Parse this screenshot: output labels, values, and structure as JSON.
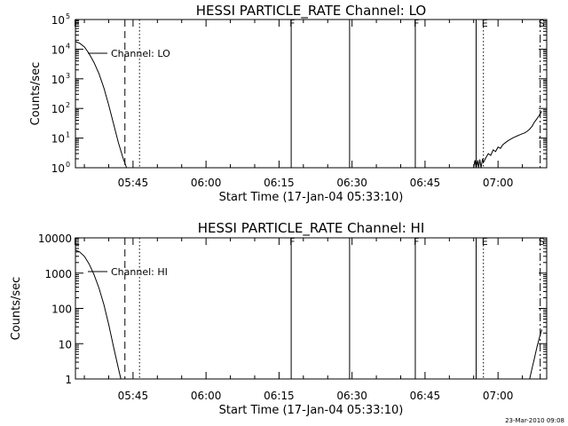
{
  "footer": {
    "timestamp": "23-Mar-2010 09:08"
  },
  "chart_data": [
    {
      "type": "line",
      "title": "HESSI PARTICLE_RATE Channel: LO",
      "xlabel": "Start Time (17-Jan-04 05:33:10)",
      "ylabel": "Counts/sec",
      "yscale": "log",
      "xlim": [
        "05:33:10",
        "07:10:00"
      ],
      "ylim": [
        1,
        100000
      ],
      "xticks": [
        "05:45",
        "06:00",
        "06:15",
        "06:30",
        "06:45",
        "07:00"
      ],
      "yticks": [
        {
          "value": 1,
          "base": "10",
          "exp": "0"
        },
        {
          "value": 10,
          "base": "10",
          "exp": "1"
        },
        {
          "value": 100,
          "base": "10",
          "exp": "2"
        },
        {
          "value": 1000,
          "base": "10",
          "exp": "3"
        },
        {
          "value": 10000,
          "base": "10",
          "exp": "4"
        },
        {
          "value": 100000,
          "base": "10",
          "exp": "5"
        }
      ],
      "legend": "Channel: LO",
      "legend_placement": "top-left",
      "series": [
        {
          "name": "Channel: LO",
          "segments": [
            [
              [
                "05:33:10",
                18000
              ],
              [
                "05:34:00",
                16000
              ],
              [
                "05:35:00",
                12000
              ],
              [
                "05:36:00",
                7000
              ],
              [
                "05:37:00",
                3500
              ],
              [
                "05:38:00",
                1500
              ],
              [
                "05:39:00",
                500
              ],
              [
                "05:40:00",
                130
              ],
              [
                "05:41:00",
                30
              ],
              [
                "05:42:00",
                7
              ],
              [
                "05:43:00",
                2
              ],
              [
                "05:43:40",
                1
              ]
            ],
            [
              [
                "06:55:00",
                1
              ],
              [
                "06:55:15",
                1.8
              ],
              [
                "06:55:30",
                1
              ],
              [
                "06:55:50",
                1.8
              ],
              [
                "06:56:00",
                1
              ],
              [
                "06:56:15",
                1.9
              ],
              [
                "06:56:30",
                1
              ],
              [
                "06:56:50",
                2
              ],
              [
                "06:57:00",
                1.5
              ],
              [
                "06:57:30",
                2.2
              ],
              [
                "06:58:00",
                3
              ],
              [
                "06:58:30",
                2.6
              ],
              [
                "06:59:00",
                4
              ],
              [
                "06:59:30",
                3.5
              ],
              [
                "07:00:00",
                5
              ],
              [
                "07:00:30",
                4.5
              ],
              [
                "07:01:00",
                6
              ],
              [
                "07:01:30",
                7
              ],
              [
                "07:02:00",
                8
              ],
              [
                "07:02:30",
                9
              ],
              [
                "07:03:00",
                10
              ],
              [
                "07:03:30",
                11
              ],
              [
                "07:04:00",
                12
              ],
              [
                "07:04:30",
                13
              ],
              [
                "07:05:00",
                14
              ],
              [
                "07:05:30",
                15
              ],
              [
                "07:06:00",
                17
              ],
              [
                "07:06:30",
                20
              ],
              [
                "07:07:00",
                25
              ],
              [
                "07:07:30",
                35
              ],
              [
                "07:08:00",
                45
              ],
              [
                "07:08:30",
                60
              ],
              [
                "07:09:00",
                80
              ]
            ]
          ]
        }
      ],
      "markers": [
        {
          "time": "05:33:10",
          "style": "solid",
          "label": "E"
        },
        {
          "time": "05:43:20",
          "style": "dashed",
          "label": ""
        },
        {
          "time": "05:46:20",
          "style": "dotted",
          "label": ""
        },
        {
          "time": "06:17:30",
          "style": "solid",
          "label": "F"
        },
        {
          "time": "06:29:30",
          "style": "solid",
          "label": ""
        },
        {
          "time": "06:43:00",
          "style": "solid",
          "label": "F"
        },
        {
          "time": "06:55:30",
          "style": "solid",
          "label": ""
        },
        {
          "time": "06:57:00",
          "style": "dotted",
          "label": "E"
        },
        {
          "time": "07:08:40",
          "style": "dashdot",
          "label": "S"
        }
      ]
    },
    {
      "type": "line",
      "title": "HESSI PARTICLE_RATE Channel: HI",
      "xlabel": "Start Time (17-Jan-04 05:33:10)",
      "ylabel": "Counts/sec",
      "yscale": "log",
      "xlim": [
        "05:33:10",
        "07:10:00"
      ],
      "ylim": [
        1,
        10000
      ],
      "xticks": [
        "05:45",
        "06:00",
        "06:15",
        "06:30",
        "06:45",
        "07:00"
      ],
      "yticks": [
        {
          "value": 1,
          "label": "1"
        },
        {
          "value": 10,
          "label": "10"
        },
        {
          "value": 100,
          "label": "100"
        },
        {
          "value": 1000,
          "label": "1000"
        },
        {
          "value": 10000,
          "label": "10000"
        }
      ],
      "legend": "Channel: HI",
      "legend_placement": "top-left",
      "series": [
        {
          "name": "Channel: HI",
          "segments": [
            [
              [
                "05:33:10",
                4500
              ],
              [
                "05:34:00",
                4000
              ],
              [
                "05:35:00",
                3000
              ],
              [
                "05:36:00",
                1800
              ],
              [
                "05:37:00",
                900
              ],
              [
                "05:38:00",
                380
              ],
              [
                "05:39:00",
                130
              ],
              [
                "05:40:00",
                35
              ],
              [
                "05:41:00",
                8
              ],
              [
                "05:42:00",
                2
              ],
              [
                "05:42:30",
                1
              ]
            ],
            [
              [
                "07:06:30",
                1
              ],
              [
                "07:07:00",
                2
              ],
              [
                "07:07:30",
                4
              ],
              [
                "07:08:00",
                8
              ],
              [
                "07:08:30",
                15
              ],
              [
                "07:09:00",
                25
              ]
            ]
          ]
        }
      ],
      "markers": [
        {
          "time": "05:33:10",
          "style": "solid",
          "label": "E"
        },
        {
          "time": "05:43:20",
          "style": "dashed",
          "label": ""
        },
        {
          "time": "05:46:20",
          "style": "dotted",
          "label": ""
        },
        {
          "time": "06:17:30",
          "style": "solid",
          "label": "F"
        },
        {
          "time": "06:29:30",
          "style": "solid",
          "label": ""
        },
        {
          "time": "06:43:00",
          "style": "solid",
          "label": "F"
        },
        {
          "time": "06:55:30",
          "style": "solid",
          "label": ""
        },
        {
          "time": "06:57:00",
          "style": "dotted",
          "label": "E"
        },
        {
          "time": "07:08:40",
          "style": "dashdot",
          "label": "S"
        }
      ]
    }
  ]
}
